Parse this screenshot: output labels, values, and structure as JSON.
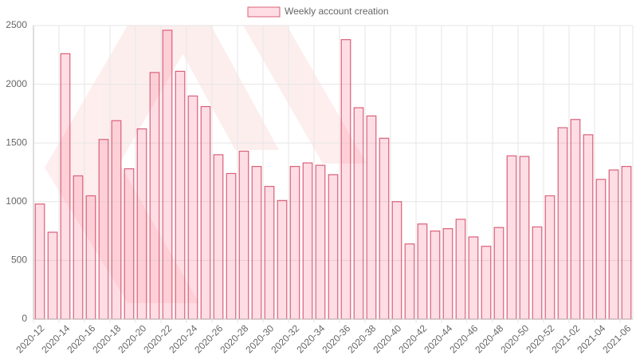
{
  "chart_data": {
    "type": "bar",
    "legend": "Weekly account creation",
    "legend_position": "top",
    "color": "rgba(255,99,132,0.22)",
    "border_color": "#d9607a",
    "grid": true,
    "categories": [
      "2020-12",
      null,
      "2020-14",
      null,
      "2020-16",
      null,
      "2020-18",
      null,
      "2020-20",
      null,
      "2020-22",
      null,
      "2020-24",
      null,
      "2020-26",
      null,
      "2020-28",
      null,
      "2020-30",
      null,
      "2020-32",
      null,
      "2020-34",
      null,
      "2020-36",
      null,
      "2020-38",
      null,
      "2020-40",
      null,
      "2020-42",
      null,
      "2020-44",
      null,
      "2020-46",
      null,
      "2020-48",
      null,
      "2020-50",
      null,
      "2020-52",
      null,
      "2021-02",
      null,
      "2021-04",
      null,
      "2021-06"
    ],
    "values": [
      980,
      740,
      2260,
      1220,
      1050,
      1530,
      1690,
      1280,
      1620,
      2100,
      2460,
      2110,
      1900,
      1810,
      1400,
      1240,
      1430,
      1300,
      1130,
      1010,
      1300,
      1330,
      1310,
      1230,
      2380,
      1800,
      1730,
      1540,
      1000,
      640,
      810,
      750,
      770,
      850,
      700,
      620,
      780,
      1390,
      1385,
      785,
      1050,
      1630,
      1700,
      1570,
      1190,
      1270,
      1300
    ],
    "ylim": [
      0,
      2500
    ],
    "yticks": [
      0,
      500,
      1000,
      1500,
      2000,
      2500
    ]
  }
}
